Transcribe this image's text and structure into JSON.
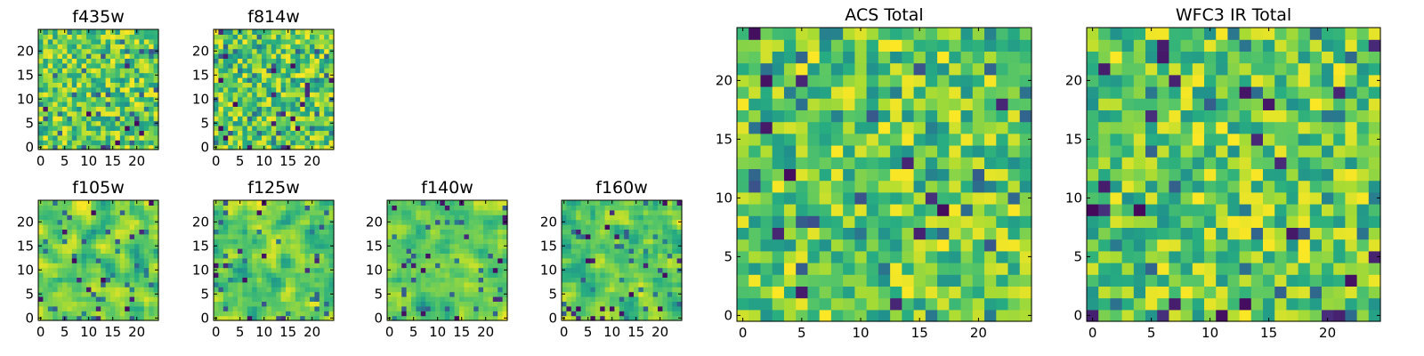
{
  "chart_data": [
    {
      "type": "heatmap",
      "title": "f435w",
      "xlim": [
        0,
        24
      ],
      "ylim": [
        0,
        24
      ],
      "xticks": [
        0,
        5,
        10,
        15,
        20
      ],
      "yticks": [
        0,
        5,
        10,
        15,
        20
      ],
      "texture": "fine"
    },
    {
      "type": "heatmap",
      "title": "f814w",
      "xlim": [
        0,
        24
      ],
      "ylim": [
        0,
        24
      ],
      "xticks": [
        0,
        5,
        10,
        15,
        20
      ],
      "yticks": [
        0,
        5,
        10,
        15,
        20
      ],
      "texture": "fine"
    },
    {
      "type": "heatmap",
      "title": "f105w",
      "xlim": [
        0,
        24
      ],
      "ylim": [
        0,
        24
      ],
      "xticks": [
        0,
        5,
        10,
        15,
        20
      ],
      "yticks": [
        0,
        5,
        10,
        15,
        20
      ],
      "texture": "smooth"
    },
    {
      "type": "heatmap",
      "title": "f125w",
      "xlim": [
        0,
        24
      ],
      "ylim": [
        0,
        24
      ],
      "xticks": [
        0,
        5,
        10,
        15,
        20
      ],
      "yticks": [
        0,
        5,
        10,
        15,
        20
      ],
      "texture": "smooth"
    },
    {
      "type": "heatmap",
      "title": "f140w",
      "xlim": [
        0,
        24
      ],
      "ylim": [
        0,
        24
      ],
      "xticks": [
        0,
        5,
        10,
        15,
        20
      ],
      "yticks": [
        0,
        5,
        10,
        15,
        20
      ],
      "texture": "smooth"
    },
    {
      "type": "heatmap",
      "title": "f160w",
      "xlim": [
        0,
        24
      ],
      "ylim": [
        0,
        24
      ],
      "xticks": [
        0,
        5,
        10,
        15,
        20
      ],
      "yticks": [
        0,
        5,
        10,
        15,
        20
      ],
      "texture": "smooth"
    },
    {
      "type": "heatmap",
      "title": "ACS Total",
      "xlim": [
        0,
        24
      ],
      "ylim": [
        0,
        24
      ],
      "xticks": [
        0,
        5,
        10,
        15,
        20
      ],
      "yticks": [
        0,
        5,
        10,
        15,
        20
      ],
      "texture": "medium"
    },
    {
      "type": "heatmap",
      "title": "WFC3 IR Total",
      "xlim": [
        0,
        24
      ],
      "ylim": [
        0,
        24
      ],
      "xticks": [
        0,
        5,
        10,
        15,
        20
      ],
      "yticks": [
        0,
        5,
        10,
        15,
        20
      ],
      "texture": "medium"
    }
  ],
  "colormap": "viridis",
  "grid": false
}
